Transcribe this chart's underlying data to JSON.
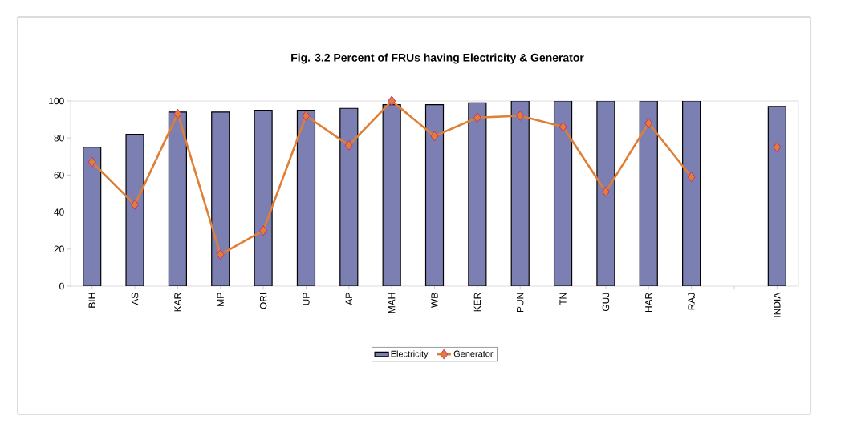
{
  "chart_data": {
    "type": "bar",
    "title": "Fig. 3.2  Percent of FRUs having Electricity & Generator",
    "categories": [
      "BIH",
      "AS",
      "KAR",
      "MP",
      "ORI",
      "UP",
      "AP",
      "MAH",
      "WB",
      "KER",
      "PUN",
      "TN",
      "GUJ",
      "HAR",
      "RAJ",
      null,
      "INDIA"
    ],
    "series": [
      {
        "name": "Electricity",
        "color": "#7c7fb2",
        "values": [
          75,
          82,
          94,
          94,
          95,
          95,
          96,
          98,
          98,
          99,
          100,
          100,
          100,
          100,
          100,
          null,
          97
        ]
      },
      {
        "name": "Generator",
        "type": "line",
        "color": "#e07e34",
        "marker": "diamond",
        "values": [
          67,
          44,
          93,
          17,
          30,
          92,
          76,
          100,
          81,
          91,
          92,
          86,
          51,
          88,
          59,
          null,
          75
        ]
      }
    ],
    "ylim": [
      0,
      100
    ],
    "yticks": [
      0,
      20,
      40,
      60,
      80,
      100
    ],
    "legend": "bottom"
  }
}
